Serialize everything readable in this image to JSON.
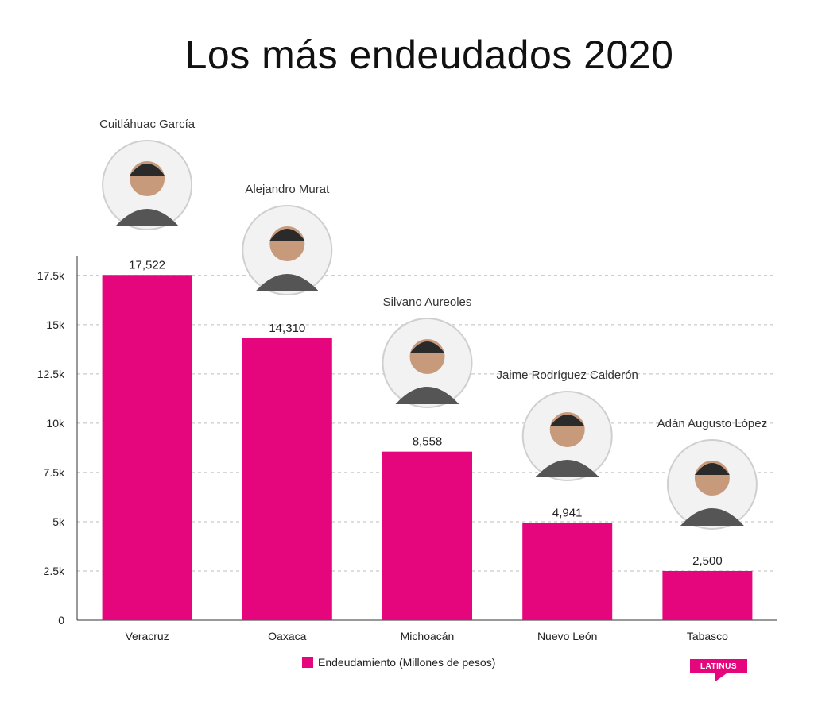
{
  "title": "Los más endeudados 2020",
  "colors": {
    "bar": "#E5067E",
    "grid": "#bdbdbd",
    "axis": "#333333"
  },
  "chart_data": {
    "type": "bar",
    "title": "Los más endeudados 2020",
    "categories": [
      "Veracruz",
      "Oaxaca",
      "Michoacán",
      "Nuevo León",
      "Tabasco"
    ],
    "series": [
      {
        "name": "Endeudamiento (Millones de pesos)",
        "values": [
          17522,
          14310,
          8558,
          4941,
          2500
        ]
      }
    ],
    "data_labels": [
      "17,522",
      "14,310",
      "8,558",
      "4,941",
      "2,500"
    ],
    "governors": [
      "Cuitláhuac García",
      "Alejandro Murat",
      "Silvano Aureoles",
      "Jaime Rodríguez Calderón",
      "Adán Augusto López"
    ],
    "yticks": [
      0,
      2500,
      5000,
      7500,
      10000,
      12500,
      15000,
      17500
    ],
    "ytick_labels": [
      "0",
      "2.5k",
      "5k",
      "7.5k",
      "10k",
      "12.5k",
      "15k",
      "17.5k"
    ],
    "ylim": [
      0,
      18500
    ],
    "grid": true,
    "legend_position": "bottom-center"
  },
  "legend": {
    "label": "Endeudamiento (Millones de pesos)"
  },
  "logo": {
    "text": "LATINUS"
  }
}
